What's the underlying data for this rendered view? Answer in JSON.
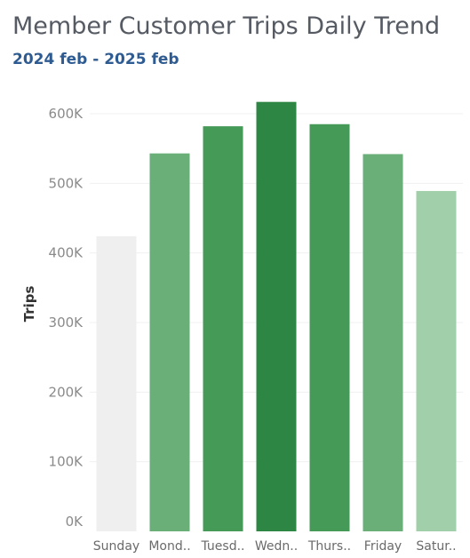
{
  "header": {
    "title": "Member Customer Trips Daily Trend",
    "subtitle": "2024 feb - 2025 feb"
  },
  "chart_data": {
    "type": "bar",
    "title": "Member Customer Trips Daily Trend",
    "subtitle": "2024 feb - 2025 feb",
    "xlabel": "",
    "ylabel": "Trips",
    "categories": [
      "Sunday",
      "Monday",
      "Tuesday",
      "Wednesday",
      "Thursday",
      "Friday",
      "Saturday"
    ],
    "category_labels": [
      "Sunday",
      "Mond..",
      "Tuesd..",
      "Wedn..",
      "Thurs..",
      "Friday",
      "Satur.."
    ],
    "values": [
      424000,
      543000,
      582000,
      617000,
      585000,
      542000,
      489000
    ],
    "colors": [
      "#efefef",
      "#6aae78",
      "#469a57",
      "#2d8643",
      "#469a57",
      "#6aae78",
      "#a1cfa9"
    ],
    "ylim": [
      0,
      650000
    ],
    "y_ticks": [
      0,
      100000,
      200000,
      300000,
      400000,
      500000,
      600000
    ],
    "y_tick_labels": [
      "0K",
      "100K",
      "200K",
      "300K",
      "400K",
      "500K",
      "600K"
    ],
    "grid": true,
    "legend": "none"
  }
}
